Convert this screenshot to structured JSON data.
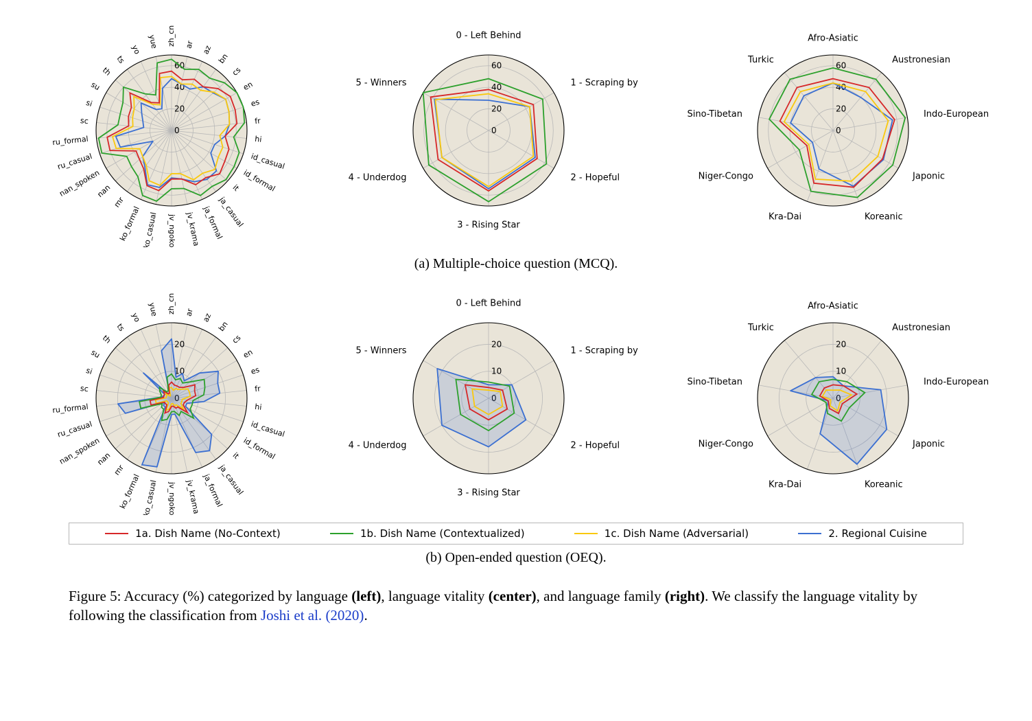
{
  "colors": {
    "series_1a": "#d62728",
    "series_1b": "#2ca02c",
    "series_1c": "#f9c80e",
    "series_2": "#3b6fd1",
    "fill_2": "rgba(59,111,209,0.18)",
    "grid": "#b8b8b8",
    "ring_fill": "#e9e4d8",
    "axis_label": "#000000"
  },
  "fontsizes": {
    "tick": 12,
    "axis_label_small": 12,
    "axis_label_med": 13,
    "subcaption": 20,
    "legend": 15,
    "figcaption": 21
  },
  "legend": [
    {
      "name": "1a. Dish Name (No-Context)",
      "color_key": "series_1a"
    },
    {
      "name": "1b. Dish Name (Contextualized)",
      "color_key": "series_1b"
    },
    {
      "name": "1c. Dish Name (Adversarial)",
      "color_key": "series_1c"
    },
    {
      "name": "2. Regional Cuisine",
      "color_key": "series_2"
    }
  ],
  "subcaptions": {
    "a": "(a) Multiple-choice question (MCQ).",
    "b": "(b) Open-ended question (OEQ)."
  },
  "figcaption": {
    "prefix": "Figure 5: Accuracy (%) categorized by language ",
    "bold1": "(left)",
    "mid1": ", language vitality ",
    "bold2": "(center)",
    "mid2": ", and language family ",
    "bold3": "(right)",
    "mid3": ". We classify the language vitality by following the classification from ",
    "link1": "Joshi et al.",
    "link2": "(2020)",
    "suffix": "."
  },
  "radar_lang": {
    "labels": [
      "zh_cn",
      "ar",
      "az",
      "bn",
      "cs",
      "en",
      "es",
      "fr",
      "hi",
      "id_casual",
      "id_formal",
      "it",
      "ja_casual",
      "ja_formal",
      "jv_krama",
      "jv_ngoko",
      "ko_casual",
      "ko_formal",
      "mr",
      "nan",
      "nan_spoken",
      "ru_casual",
      "ru_formal",
      "sc",
      "si",
      "su",
      "th",
      "ts",
      "yo",
      "yue"
    ],
    "label_fontsize": 11
  },
  "radar_vitality": {
    "labels": [
      "0 - Left Behind",
      "1 - Scraping by",
      "2 - Hopeful",
      "3 - Rising Star",
      "4 - Underdog",
      "5 - Winners"
    ],
    "label_fontsize": 13
  },
  "radar_family": {
    "labels": [
      "Afro-Asiatic",
      "Austronesian",
      "Indo-European",
      "Japonic",
      "Koreanic",
      "Kra-Dai",
      "Niger-Congo",
      "Sino-Tibetan",
      "Turkic"
    ],
    "label_fontsize": 13
  },
  "row_a": {
    "rmax": 70,
    "ticks": [
      0,
      20,
      40,
      60
    ],
    "lang": {
      "1a": [
        55,
        48,
        52,
        50,
        58,
        63,
        62,
        61,
        50,
        56,
        57,
        60,
        54,
        55,
        46,
        45,
        57,
        56,
        44,
        40,
        38,
        60,
        60,
        40,
        42,
        43,
        52,
        32,
        28,
        54
      ],
      "1b": [
        66,
        58,
        62,
        60,
        66,
        72,
        70,
        68,
        58,
        66,
        67,
        68,
        64,
        66,
        55,
        54,
        67,
        66,
        53,
        50,
        48,
        68,
        68,
        50,
        50,
        52,
        60,
        42,
        36,
        64
      ],
      "1c": [
        50,
        44,
        47,
        46,
        53,
        58,
        56,
        54,
        45,
        50,
        50,
        54,
        49,
        50,
        41,
        40,
        52,
        51,
        40,
        36,
        34,
        54,
        55,
        36,
        38,
        40,
        47,
        30,
        26,
        50
      ],
      "2": [
        48,
        44,
        42,
        50,
        52,
        58,
        56,
        54,
        50,
        42,
        42,
        56,
        56,
        52,
        46,
        44,
        54,
        55,
        42,
        36,
        20,
        50,
        52,
        26,
        28,
        32,
        38,
        24,
        22,
        40
      ]
    },
    "vitality": {
      "1a": [
        38,
        48,
        52,
        56,
        54,
        62
      ],
      "1b": [
        48,
        58,
        62,
        66,
        64,
        70
      ],
      "1c": [
        34,
        44,
        48,
        52,
        50,
        57
      ],
      "2": [
        28,
        44,
        50,
        54,
        50,
        58
      ]
    },
    "family": {
      "1a": [
        48,
        52,
        58,
        53,
        56,
        52,
        28,
        50,
        52
      ],
      "1b": [
        58,
        62,
        68,
        64,
        66,
        60,
        36,
        60,
        62
      ],
      "1c": [
        44,
        47,
        52,
        48,
        50,
        48,
        26,
        46,
        47
      ],
      "2": [
        44,
        40,
        56,
        54,
        55,
        38,
        22,
        40,
        42
      ]
    }
  },
  "row_b": {
    "rmax": 28,
    "ticks": [
      0,
      10,
      20
    ],
    "lang": {
      "1a": [
        6,
        5,
        5,
        5,
        6,
        10,
        9,
        9,
        6,
        5,
        5,
        8,
        4,
        4,
        3,
        3,
        5,
        6,
        3,
        3,
        3,
        8,
        8,
        3,
        3,
        3,
        4,
        2,
        2,
        5
      ],
      "1b": [
        9,
        7,
        8,
        7,
        9,
        14,
        13,
        12,
        8,
        8,
        8,
        11,
        6,
        7,
        5,
        5,
        8,
        9,
        5,
        5,
        4,
        12,
        12,
        4,
        4,
        5,
        6,
        3,
        3,
        8
      ],
      "1c": [
        4,
        3,
        4,
        4,
        5,
        7,
        7,
        7,
        4,
        4,
        4,
        6,
        3,
        3,
        2,
        2,
        4,
        5,
        2,
        2,
        2,
        6,
        6,
        2,
        2,
        2,
        3,
        1,
        1,
        4
      ],
      "2": [
        22,
        8,
        10,
        8,
        14,
        20,
        18,
        18,
        12,
        6,
        6,
        20,
        24,
        22,
        6,
        6,
        26,
        27,
        4,
        4,
        3,
        18,
        20,
        4,
        3,
        3,
        14,
        2,
        2,
        18
      ]
    },
    "vitality": {
      "1a": [
        4,
        6,
        8,
        8,
        8,
        10
      ],
      "1b": [
        6,
        9,
        11,
        12,
        12,
        14
      ],
      "1c": [
        3,
        5,
        6,
        6,
        6,
        7
      ],
      "2": [
        5,
        10,
        16,
        18,
        20,
        22
      ]
    },
    "family": {
      "1a": [
        5,
        6,
        9,
        4,
        6,
        4,
        2,
        5,
        5
      ],
      "1b": [
        7,
        8,
        12,
        7,
        9,
        6,
        3,
        8,
        8
      ],
      "1c": [
        3,
        4,
        7,
        3,
        5,
        3,
        1,
        4,
        4
      ],
      "2": [
        8,
        6,
        18,
        23,
        26,
        14,
        2,
        16,
        10
      ]
    }
  }
}
